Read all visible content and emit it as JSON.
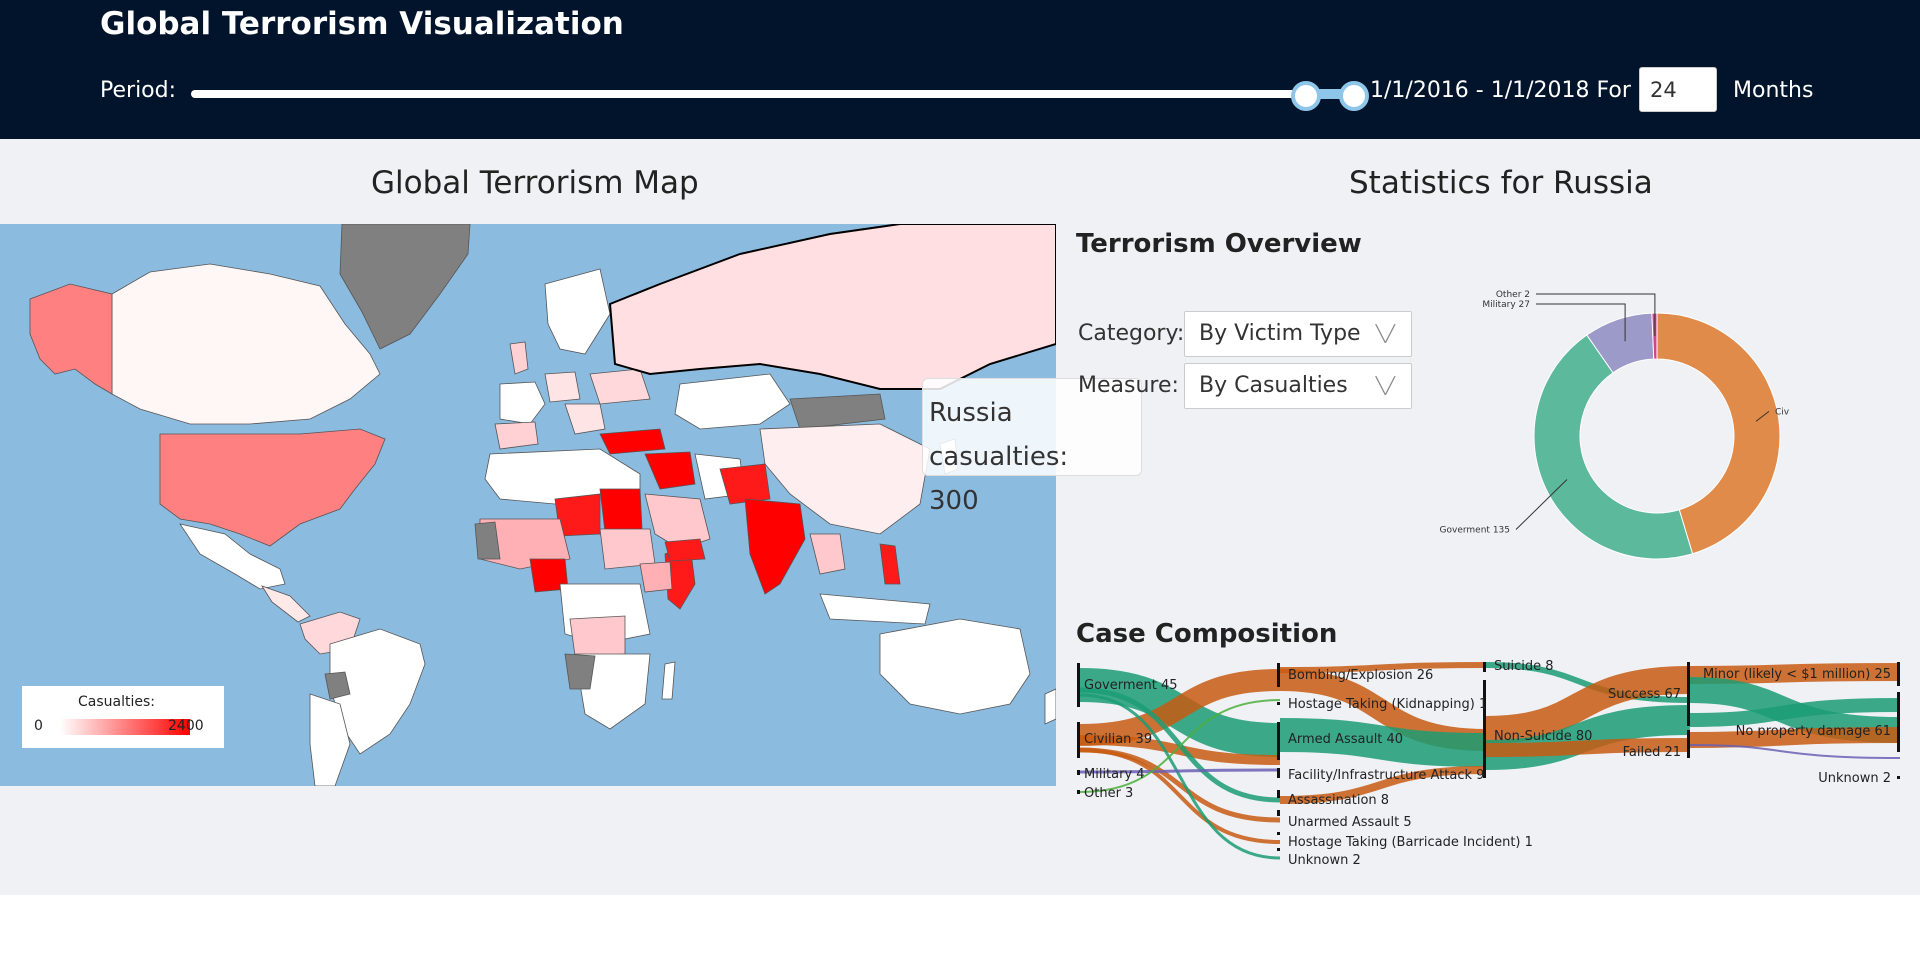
{
  "header": {
    "title": "Global Terrorism Visualization",
    "period_label": "Period:",
    "slider": {
      "start_fraction": 0.79,
      "end_fraction": 0.83
    },
    "period_text": "1/1/2016 - 1/1/2018 For",
    "months_value": "24",
    "months_label": "Months"
  },
  "map_panel": {
    "title": "Global Terrorism Map",
    "legend": {
      "title": "Casualties:",
      "min": "0",
      "max": "2400",
      "min_color": "#ffffff",
      "max_color": "#ff0000"
    },
    "tooltip": {
      "line1": "Russia casualties:",
      "line2": "300"
    },
    "colors": {
      "ocean": "#8cbbe0",
      "no_data": "#808080"
    }
  },
  "stats_panel": {
    "title": "Statistics for Russia",
    "overview": {
      "title": "Terrorism Overview",
      "category_label": "Category:",
      "category_value": "By Victim Type",
      "measure_label": "Measure:",
      "measure_value": "By Casualties",
      "donut": [
        {
          "label": "Civilian 136",
          "value": 136,
          "color": "#e08b4a"
        },
        {
          "label": "Goverment 135",
          "value": 135,
          "color": "#5cb99b"
        },
        {
          "label": "Military 27",
          "value": 27,
          "color": "#9c9ac8"
        },
        {
          "label": "Other 2",
          "value": 2,
          "color": "#d0468c"
        }
      ]
    },
    "composition": {
      "title": "Case Composition",
      "nodes": {
        "col1": [
          "Goverment 45",
          "Civilian 39",
          "Military 4",
          "Other 3"
        ],
        "col2": [
          "Bombing/Explosion 26",
          "Hostage Taking (Kidnapping) 1",
          "Armed Assault 40",
          "Facility/Infrastructure Attack 9",
          "Assassination 8",
          "Unarmed Assault 5",
          "Hostage Taking (Barricade Incident) 1",
          "Unknown 2"
        ],
        "col3": [
          "Suicide 8",
          "Non-Suicide 80"
        ],
        "col4": [
          "Success 67",
          "Failed 21"
        ],
        "col5": [
          "Minor (likely < $1 million) 25",
          "No property damage 61",
          "Unknown 2"
        ]
      }
    }
  }
}
